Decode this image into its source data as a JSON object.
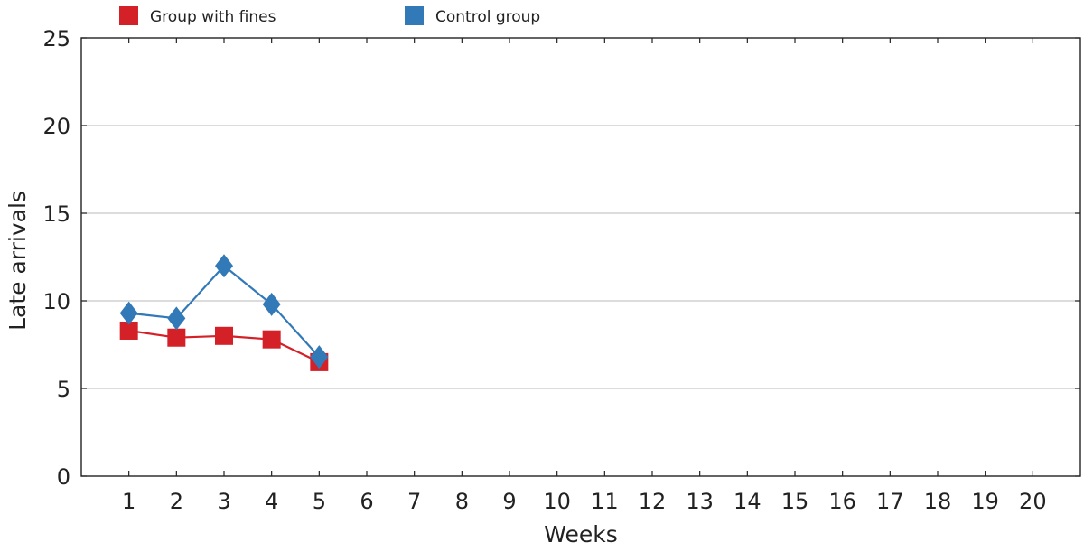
{
  "chart_data": {
    "type": "line",
    "title": "",
    "xlabel": "Weeks",
    "ylabel": "Late arrivals",
    "xlim": [
      0,
      21
    ],
    "ylim": [
      0,
      25
    ],
    "xticks": [
      1,
      2,
      3,
      4,
      5,
      6,
      7,
      8,
      9,
      10,
      11,
      12,
      13,
      14,
      15,
      16,
      17,
      18,
      19,
      20
    ],
    "yticks": [
      0,
      5,
      10,
      15,
      20,
      25
    ],
    "grid": "horizontal",
    "legend_position": "top-left",
    "series": [
      {
        "name": "Group with fines",
        "color": "#d42027",
        "marker": "square",
        "x": [
          1,
          2,
          3,
          4,
          5
        ],
        "values": [
          8.3,
          7.9,
          8.0,
          7.8,
          6.5
        ]
      },
      {
        "name": "Control group",
        "color": "#3279b8",
        "marker": "diamond",
        "x": [
          1,
          2,
          3,
          4,
          5
        ],
        "values": [
          9.3,
          9.0,
          12.0,
          9.8,
          6.8
        ]
      }
    ]
  }
}
